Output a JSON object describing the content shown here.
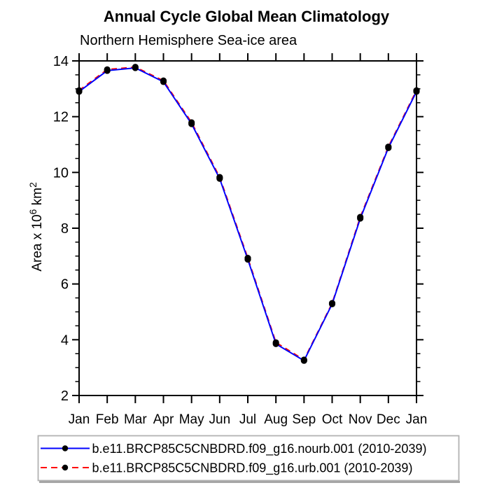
{
  "page": {
    "background": "#ffffff"
  },
  "chart_data": {
    "type": "line",
    "title": "Annual Cycle Global Mean Climatology",
    "subtitle": "Northern Hemisphere Sea-ice area",
    "xlabel": "",
    "ylabel": "Area x 10^6 km^2",
    "ylabel_parts": {
      "main": "Area x 10",
      "sup1": "6",
      "mid": " km",
      "sup2": "2"
    },
    "x_categories": [
      "Jan",
      "Feb",
      "Mar",
      "Apr",
      "May",
      "Jun",
      "Jul",
      "Aug",
      "Sep",
      "Oct",
      "Nov",
      "Dec",
      "Jan"
    ],
    "ylim": [
      2,
      14
    ],
    "ytick_major": [
      2,
      4,
      6,
      8,
      10,
      12,
      14
    ],
    "ytick_minor_step": 0.5,
    "grid": false,
    "legend_position": "bottom",
    "axis_color": "#000000",
    "legend_border_color": "#b2b2b2",
    "legend_shadow_color": "#a6a6a6",
    "marker_color": "#000000",
    "series": [
      {
        "key": "nourb",
        "name": "b.e11.BRCP85C5CNBDRD.f09_g16.nourb.001 (2010-2039)",
        "color": "#0000ff",
        "style": "solid",
        "marker": "black-dot",
        "values": [
          12.9,
          13.65,
          13.75,
          13.25,
          11.74,
          9.78,
          6.88,
          3.85,
          3.25,
          5.28,
          8.35,
          10.88,
          12.9
        ]
      },
      {
        "key": "urb",
        "name": "b.e11.BRCP85C5CNBDRD.f09_g16.urb.001 (2010-2039)",
        "color": "#ff0000",
        "style": "dashed",
        "marker": "black-dot",
        "values": [
          12.94,
          13.69,
          13.78,
          13.29,
          11.79,
          9.83,
          6.93,
          3.9,
          3.28,
          5.31,
          8.4,
          10.92,
          12.94
        ]
      }
    ]
  }
}
